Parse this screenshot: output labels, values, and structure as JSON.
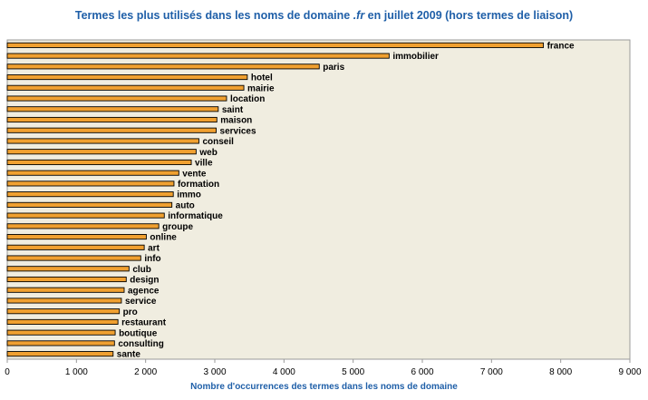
{
  "chart_data": {
    "type": "bar",
    "orientation": "horizontal",
    "title_before": "Termes les plus utilisés dans les noms de domaine ",
    "title_em": ".fr",
    "title_after": " en juillet 2009 (hors termes de liaison)",
    "xlabel": "Nombre d'occurrences des termes dans les noms de domaine",
    "xlim": [
      0,
      9000
    ],
    "xticks": [
      0,
      1000,
      2000,
      3000,
      4000,
      5000,
      6000,
      7000,
      8000,
      9000
    ],
    "xtick_labels": [
      "0",
      "1 000",
      "2 000",
      "3 000",
      "4 000",
      "5 000",
      "6 000",
      "7 000",
      "8 000",
      "9 000"
    ],
    "grid": false,
    "categories": [
      "france",
      "immobilier",
      "paris",
      "hotel",
      "mairie",
      "location",
      "saint",
      "maison",
      "services",
      "conseil",
      "web",
      "ville",
      "vente",
      "formation",
      "immo",
      "auto",
      "informatique",
      "groupe",
      "online",
      "art",
      "info",
      "club",
      "design",
      "agence",
      "service",
      "pro",
      "restaurant",
      "boutique",
      "consulting",
      "sante"
    ],
    "values": [
      7750,
      5520,
      4510,
      3470,
      3420,
      3170,
      3050,
      3030,
      3020,
      2770,
      2730,
      2660,
      2480,
      2410,
      2400,
      2380,
      2270,
      2190,
      2010,
      1980,
      1930,
      1760,
      1720,
      1690,
      1650,
      1620,
      1600,
      1560,
      1550,
      1530
    ],
    "colors": {
      "bar": "#f0a030",
      "plot_bg": "#f0ede0",
      "title": "#1f5fa8"
    }
  }
}
